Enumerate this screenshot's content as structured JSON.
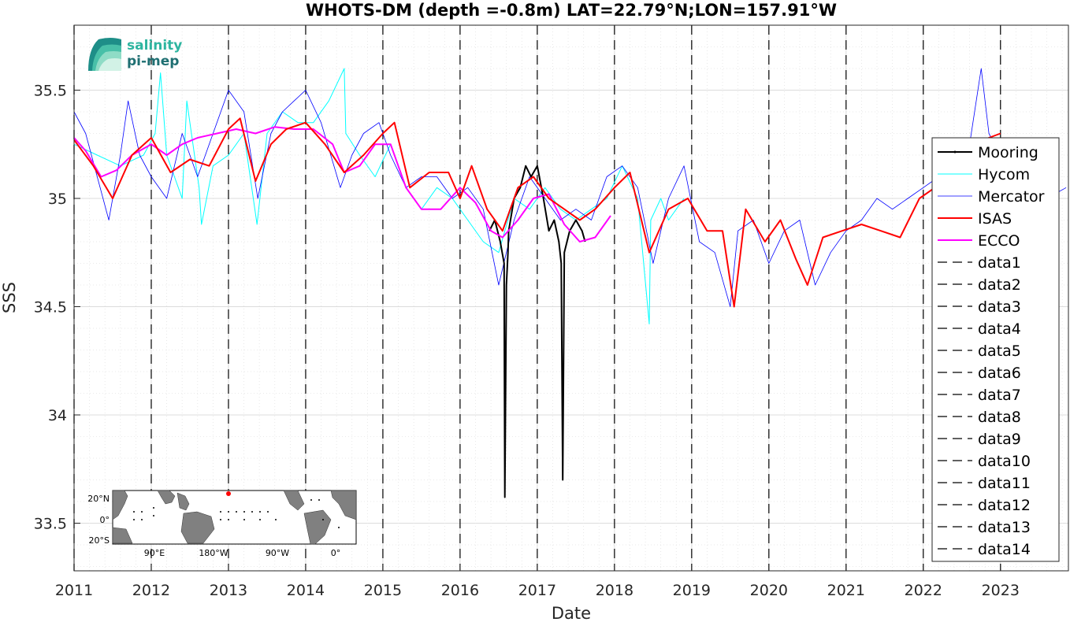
{
  "chart_data": {
    "type": "line",
    "title": "WHOTS-DM (depth =-0.8m) LAT=22.79°N;LON=157.91°W",
    "xlabel": "Date",
    "ylabel": "SSS",
    "xlim": [
      2011,
      2023.88
    ],
    "ylim": [
      33.28,
      35.8
    ],
    "x_ticks": [
      2011,
      2012,
      2013,
      2014,
      2015,
      2016,
      2017,
      2018,
      2019,
      2020,
      2021,
      2022,
      2023
    ],
    "x_tick_labels": [
      "2011",
      "2012",
      "2013",
      "2014",
      "2015",
      "2016",
      "2017",
      "2018",
      "2019",
      "2020",
      "2021",
      "2022",
      "2023"
    ],
    "y_ticks": [
      33.5,
      34,
      34.5,
      35,
      35.5
    ],
    "y_tick_labels": [
      "33.5",
      "34",
      "34.5",
      "35",
      "35.5"
    ],
    "grid": true,
    "legend_position": "right",
    "series": [
      {
        "name": "Mooring",
        "color": "#000000",
        "x": [
          2016.38,
          2016.45,
          2016.52,
          2016.57,
          2016.58,
          2016.6,
          2016.62,
          2016.63,
          2016.7,
          2016.78,
          2016.85,
          2016.92,
          2017.0,
          2017.08,
          2017.15,
          2017.22,
          2017.28,
          2017.31,
          2017.33,
          2017.35,
          2017.42,
          2017.5,
          2017.58,
          2017.62
        ],
        "y": [
          34.85,
          34.9,
          34.8,
          34.7,
          33.62,
          34.6,
          34.75,
          34.85,
          35.0,
          35.05,
          35.15,
          35.1,
          35.15,
          35.0,
          34.85,
          34.9,
          34.8,
          34.7,
          33.7,
          34.75,
          34.85,
          34.9,
          34.85,
          34.8
        ]
      },
      {
        "name": "Hycom",
        "color": "#00FFFF",
        "x": [
          2011.0,
          2011.3,
          2011.6,
          2011.9,
          2012.05,
          2012.12,
          2012.2,
          2012.4,
          2012.46,
          2012.62,
          2012.65,
          2012.8,
          2013.0,
          2013.2,
          2013.37,
          2013.5,
          2013.7,
          2013.9,
          2014.1,
          2014.3,
          2014.5,
          2014.52,
          2014.7,
          2014.9,
          2015.1,
          2015.3,
          2015.5,
          2015.7,
          2015.9,
          2016.1,
          2016.3,
          2016.5,
          2016.7,
          2016.9,
          2017.1,
          2017.3,
          2017.5,
          2017.7,
          2017.9,
          2018.1,
          2018.3,
          2018.45,
          2018.47,
          2018.6,
          2018.7,
          2018.9
        ],
        "y": [
          35.25,
          35.2,
          35.15,
          35.2,
          35.3,
          35.58,
          35.2,
          35.0,
          35.45,
          35.05,
          34.88,
          35.15,
          35.2,
          35.3,
          34.88,
          35.3,
          35.4,
          35.35,
          35.35,
          35.45,
          35.6,
          35.3,
          35.2,
          35.1,
          35.25,
          35.05,
          34.95,
          35.05,
          35.0,
          34.9,
          34.8,
          34.75,
          35.0,
          34.95,
          35.05,
          34.95,
          34.9,
          34.95,
          35.0,
          35.15,
          35.0,
          34.42,
          34.9,
          35.0,
          34.9,
          35.0
        ]
      },
      {
        "name": "Mercator",
        "color": "#0000FF",
        "x": [
          2011.0,
          2011.15,
          2011.3,
          2011.45,
          2011.6,
          2011.7,
          2011.85,
          2012.0,
          2012.2,
          2012.4,
          2012.6,
          2012.8,
          2013.0,
          2013.2,
          2013.38,
          2013.55,
          2013.7,
          2013.85,
          2014.0,
          2014.2,
          2014.45,
          2014.6,
          2014.75,
          2014.95,
          2015.1,
          2015.3,
          2015.5,
          2015.7,
          2015.9,
          2016.1,
          2016.3,
          2016.5,
          2016.7,
          2016.9,
          2017.1,
          2017.3,
          2017.5,
          2017.7,
          2017.9,
          2018.1,
          2018.3,
          2018.5,
          2018.7,
          2018.9,
          2019.1,
          2019.3,
          2019.5,
          2019.6,
          2019.8,
          2020.0,
          2020.2,
          2020.4,
          2020.6,
          2020.8,
          2021.0,
          2021.2,
          2021.4,
          2021.6,
          2021.8,
          2022.0,
          2022.2,
          2022.4,
          2022.6,
          2022.75,
          2022.85,
          2023.0,
          2023.2,
          2023.4,
          2023.6,
          2023.85
        ],
        "y": [
          35.4,
          35.3,
          35.1,
          34.9,
          35.2,
          35.45,
          35.2,
          35.1,
          35.0,
          35.3,
          35.1,
          35.3,
          35.5,
          35.4,
          35.0,
          35.3,
          35.4,
          35.45,
          35.5,
          35.35,
          35.05,
          35.2,
          35.3,
          35.35,
          35.2,
          35.05,
          35.1,
          35.1,
          35.0,
          35.05,
          34.95,
          34.6,
          34.9,
          35.1,
          35.0,
          34.9,
          34.95,
          34.9,
          35.1,
          35.15,
          35.05,
          34.7,
          35.0,
          35.15,
          34.8,
          34.75,
          34.5,
          34.85,
          34.9,
          34.7,
          34.85,
          34.9,
          34.6,
          34.75,
          34.85,
          34.9,
          35.0,
          34.95,
          35.0,
          35.05,
          35.1,
          35.15,
          35.25,
          35.6,
          35.3,
          35.2,
          35.1,
          35.05,
          35.0,
          35.05
        ]
      },
      {
        "name": "ISAS",
        "color": "#FF0000",
        "x": [
          2011.0,
          2011.25,
          2011.5,
          2011.75,
          2012.0,
          2012.25,
          2012.5,
          2012.75,
          2013.0,
          2013.15,
          2013.35,
          2013.55,
          2013.75,
          2014.0,
          2014.25,
          2014.5,
          2014.75,
          2015.0,
          2015.15,
          2015.35,
          2015.6,
          2015.85,
          2016.0,
          2016.15,
          2016.35,
          2016.55,
          2016.75,
          2016.95,
          2017.15,
          2017.35,
          2017.55,
          2017.75,
          2018.0,
          2018.2,
          2018.45,
          2018.7,
          2018.95,
          2019.2,
          2019.4,
          2019.55,
          2019.7,
          2019.95,
          2020.15,
          2020.35,
          2020.5,
          2020.7,
          2020.95,
          2021.2,
          2021.45,
          2021.7,
          2021.95,
          2022.15,
          2022.4,
          2022.65,
          2022.85,
          2023.0
        ],
        "y": [
          35.27,
          35.15,
          35.0,
          35.2,
          35.28,
          35.12,
          35.18,
          35.15,
          35.32,
          35.37,
          35.08,
          35.25,
          35.32,
          35.35,
          35.25,
          35.12,
          35.2,
          35.3,
          35.35,
          35.05,
          35.12,
          35.12,
          35.0,
          35.15,
          34.95,
          34.85,
          35.05,
          35.1,
          35.0,
          34.95,
          34.9,
          34.95,
          35.05,
          35.12,
          34.75,
          34.95,
          35.0,
          34.85,
          34.85,
          34.5,
          34.95,
          34.8,
          34.9,
          34.72,
          34.6,
          34.82,
          34.85,
          34.88,
          34.85,
          34.82,
          35.0,
          35.05,
          35.15,
          35.25,
          35.28,
          35.3
        ]
      },
      {
        "name": "ECCO",
        "color": "#FF00FF",
        "x": [
          2011.0,
          2011.15,
          2011.35,
          2011.55,
          2011.75,
          2012.0,
          2012.2,
          2012.4,
          2012.6,
          2012.85,
          2013.1,
          2013.35,
          2013.6,
          2013.85,
          2014.1,
          2014.35,
          2014.5,
          2014.7,
          2014.9,
          2015.1,
          2015.3,
          2015.5,
          2015.75,
          2016.0,
          2016.2,
          2016.4,
          2016.55,
          2016.75,
          2016.95,
          2017.15,
          2017.35,
          2017.55,
          2017.75,
          2017.95
        ],
        "y": [
          35.28,
          35.22,
          35.1,
          35.13,
          35.2,
          35.25,
          35.2,
          35.25,
          35.28,
          35.3,
          35.32,
          35.3,
          35.33,
          35.32,
          35.32,
          35.25,
          35.12,
          35.15,
          35.25,
          35.25,
          35.05,
          34.95,
          34.95,
          35.05,
          34.98,
          34.85,
          34.82,
          34.9,
          35.0,
          35.02,
          34.88,
          34.8,
          34.82,
          34.92
        ]
      }
    ],
    "vertical_lines": [
      {
        "name": "data1",
        "x": 2012.0
      },
      {
        "name": "data2",
        "x": 2013.0
      },
      {
        "name": "data3",
        "x": 2014.0
      },
      {
        "name": "data4",
        "x": 2015.0
      },
      {
        "name": "data5",
        "x": 2016.0
      },
      {
        "name": "data6",
        "x": 2017.0
      },
      {
        "name": "data7",
        "x": 2018.0
      },
      {
        "name": "data8",
        "x": 2019.0
      },
      {
        "name": "data9",
        "x": 2020.0
      },
      {
        "name": "data10",
        "x": 2021.0
      },
      {
        "name": "data11",
        "x": 2022.0
      },
      {
        "name": "data12",
        "x": 2023.0
      },
      {
        "name": "data13",
        "x": 2011.0
      },
      {
        "name": "data14",
        "x": 2011.0
      }
    ]
  },
  "logo": {
    "line1": "salinity",
    "line2": "pi-mep",
    "color1": "#2EB5A0",
    "color2": "#1F6F72"
  },
  "inset_map": {
    "lat_labels": [
      "20°N",
      "0°",
      "20°S"
    ],
    "lon_labels": [
      "90°E",
      "180°W",
      "90°W",
      "0°"
    ],
    "land_color": "#808080",
    "marker_color": "#FF0000"
  }
}
